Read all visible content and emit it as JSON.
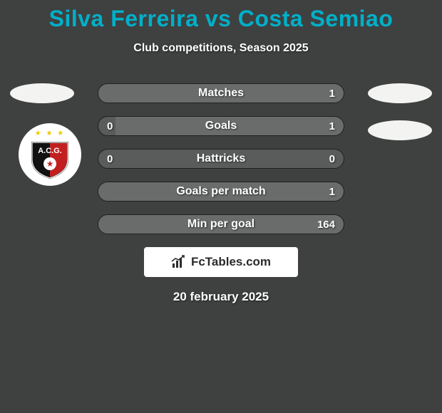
{
  "background_color": "#3f4040",
  "title": {
    "text": "Silva Ferreira vs Costa Semiao",
    "color": "#00b0c8",
    "fontsize": 32,
    "fontweight": 800
  },
  "subtitle": {
    "text": "Club competitions, Season 2025",
    "color": "#ffffff",
    "fontsize": 16
  },
  "side_ovals": {
    "color": "#f3f3f1"
  },
  "club_logo": {
    "bg": "#ffffff",
    "star_color": "#f2c800",
    "shield_red": "#c22020",
    "shield_black": "#111111",
    "text": "A.C.G.",
    "text_color": "#ffffff"
  },
  "stats": {
    "row_bg": "#5a5c5b",
    "border_color": "#1f2020",
    "label_color": "#ffffff",
    "value_color": "#ffffff",
    "fill_color": "#6a6c6b",
    "rows": [
      {
        "label": "Matches",
        "left": "",
        "right": "1",
        "left_fill_pct": 0,
        "right_fill_pct": 100
      },
      {
        "label": "Goals",
        "left": "0",
        "right": "1",
        "left_fill_pct": 0,
        "right_fill_pct": 93
      },
      {
        "label": "Hattricks",
        "left": "0",
        "right": "0",
        "left_fill_pct": 0,
        "right_fill_pct": 0
      },
      {
        "label": "Goals per match",
        "left": "",
        "right": "1",
        "left_fill_pct": 0,
        "right_fill_pct": 100
      },
      {
        "label": "Min per goal",
        "left": "",
        "right": "164",
        "left_fill_pct": 0,
        "right_fill_pct": 100
      }
    ]
  },
  "branding": {
    "bg": "#ffffff",
    "icon_color": "#2b2b2b",
    "text": "FcTables.com",
    "text_color": "#2b2b2b"
  },
  "date": {
    "text": "20 february 2025",
    "color": "#ffffff"
  }
}
